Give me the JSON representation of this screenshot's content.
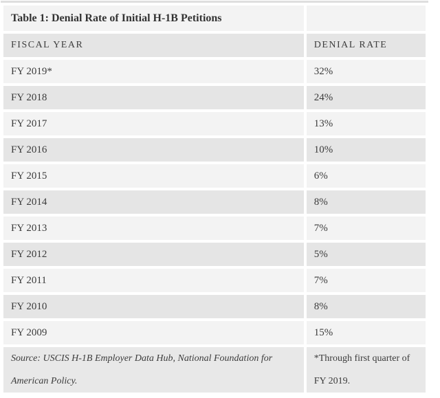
{
  "table": {
    "title": "Table 1: Denial Rate of Initial H-1B Petitions",
    "columns": [
      "FISCAL YEAR",
      "DENIAL RATE"
    ],
    "rows": [
      {
        "fiscal_year": "FY 2019*",
        "denial_rate": "32%"
      },
      {
        "fiscal_year": "FY 2018",
        "denial_rate": "24%"
      },
      {
        "fiscal_year": "FY 2017",
        "denial_rate": "13%"
      },
      {
        "fiscal_year": "FY 2016",
        "denial_rate": "10%"
      },
      {
        "fiscal_year": "FY 2015",
        "denial_rate": "6%"
      },
      {
        "fiscal_year": "FY 2014",
        "denial_rate": "8%"
      },
      {
        "fiscal_year": "FY 2013",
        "denial_rate": "7%"
      },
      {
        "fiscal_year": "FY 2012",
        "denial_rate": "5%"
      },
      {
        "fiscal_year": "FY 2011",
        "denial_rate": "7%"
      },
      {
        "fiscal_year": "FY 2010",
        "denial_rate": "8%"
      },
      {
        "fiscal_year": "FY 2009",
        "denial_rate": "15%"
      }
    ],
    "source": "Source: USCIS H-1B Employer Data Hub, National Foundation for American Policy.",
    "note": "*Through first quarter of FY 2019."
  },
  "chart_data": {
    "type": "table",
    "title": "Table 1: Denial Rate of Initial H-1B Petitions",
    "columns": [
      "FISCAL YEAR",
      "DENIAL RATE"
    ],
    "categories": [
      "FY 2019*",
      "FY 2018",
      "FY 2017",
      "FY 2016",
      "FY 2015",
      "FY 2014",
      "FY 2013",
      "FY 2012",
      "FY 2011",
      "FY 2010",
      "FY 2009"
    ],
    "values": [
      32,
      24,
      13,
      10,
      6,
      8,
      7,
      5,
      7,
      8,
      15
    ],
    "unit": "%",
    "source": "Source: USCIS H-1B Employer Data Hub, National Foundation for American Policy.",
    "note": "*Through first quarter of FY 2019."
  },
  "colors": {
    "background": "#ffffff",
    "row_light": "#f3f3f3",
    "row_dark": "#e5e5e5",
    "top_border": "#dedede",
    "text": "#3b3b3b"
  }
}
